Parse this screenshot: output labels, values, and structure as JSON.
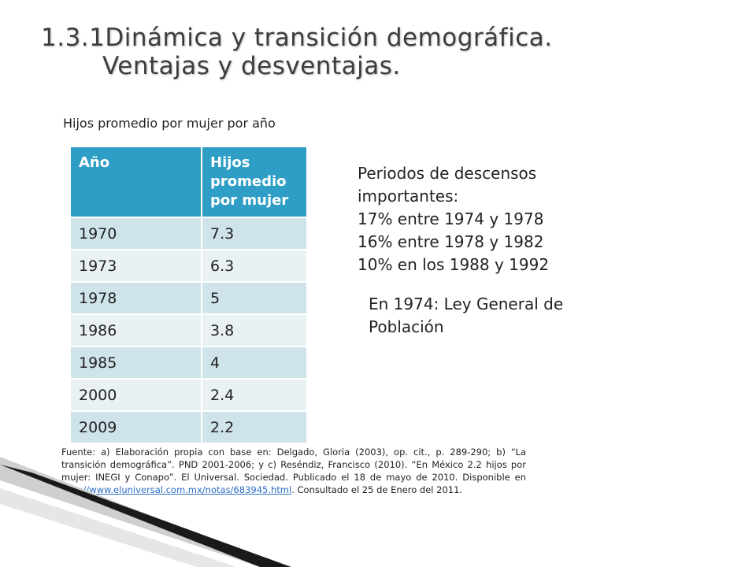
{
  "slide": {
    "title_line1": "1.3.1Dinámica y transición demográfica.",
    "title_line2": "Ventajas y desventajas."
  },
  "table": {
    "caption": "Hijos promedio por mujer por año",
    "headers": [
      "Año",
      "Hijos promedio por mujer"
    ],
    "rows": [
      [
        "1970",
        "7.3"
      ],
      [
        "1973",
        "6.3"
      ],
      [
        "1978",
        "5"
      ],
      [
        "1986",
        "3.8"
      ],
      [
        "1985",
        "4"
      ],
      [
        "2000",
        "2.4"
      ],
      [
        "2009",
        "2.2"
      ]
    ]
  },
  "notes": {
    "heading": "Periodos de descensos importantes:",
    "items": [
      "17% entre 1974 y 1978",
      "16% entre 1978 y 1982",
      "10% en los 1988 y 1992"
    ],
    "law": "En 1974: Ley General de Población"
  },
  "source": {
    "text_before_link": "Fuente: a) Elaboración propia con base en: Delgado, Gloria (2003), op. cit., p. 289-290; b) “La transición demográfica”. PND 2001-2006; y c) Reséndiz, Francisco (2010). “En México 2.2 hijos por mujer: INEGI y Conapo”. El Universal. Sociedad. Publicado el 18 de mayo de 2010. Disponible en ",
    "link": "http://www.eluniversal.com.mx/notas/683945.html",
    "text_after_link": ". Consultado el 25 de Enero del 2011."
  },
  "colors": {
    "header_bg": "#2f9ec6",
    "row_odd": "#cfe3ea",
    "row_even": "#e9f1f4",
    "title": "#3d3d3d",
    "link": "#2a6ec6"
  }
}
